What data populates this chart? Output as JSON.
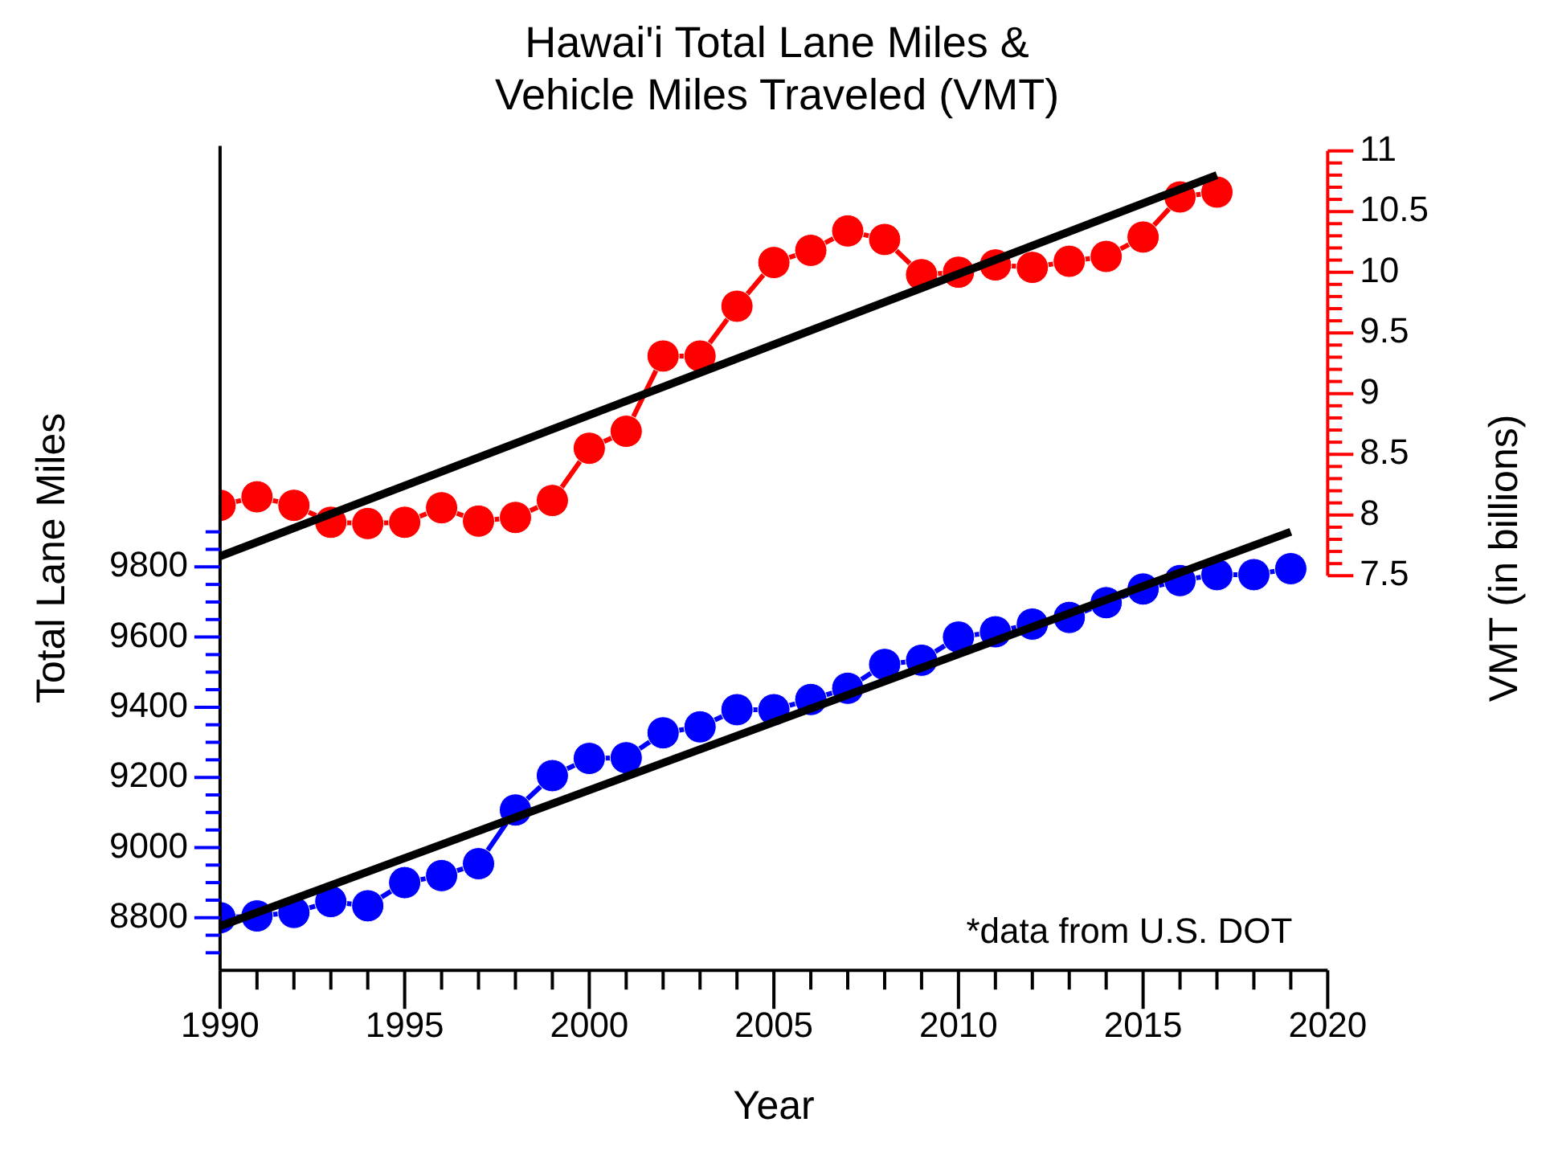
{
  "chart_data": {
    "type": "line",
    "title": "Hawai'i Total Lane Miles &\nVehicle Miles Traveled (VMT)",
    "xlabel": "Year",
    "ylabel": "Total Lane Miles",
    "y2label": "VMT (in billions)",
    "annotations": [
      "*data from U.S. DOT"
    ],
    "x": [
      1990,
      1991,
      1992,
      1993,
      1994,
      1995,
      1996,
      1997,
      1998,
      1999,
      2000,
      2001,
      2002,
      2003,
      2004,
      2005,
      2006,
      2007,
      2008,
      2009,
      2010,
      2011,
      2012,
      2013,
      2014,
      2015,
      2016,
      2017,
      2018,
      2019
    ],
    "series": [
      {
        "color": "#0000ff",
        "values": [
          8800,
          8805,
          8815,
          8846,
          8834,
          8900,
          8920,
          8954,
          9107,
          9205,
          9254,
          9256,
          9327,
          9344,
          9393,
          9393,
          9422,
          9454,
          9522,
          9534,
          9600,
          9615,
          9637,
          9656,
          9698,
          9737,
          9761,
          9778,
          9778,
          9795
        ]
      },
      {
        "color": "#ff0000",
        "axis": "y2",
        "x": [
          1990,
          1991,
          1992,
          1993,
          1994,
          1995,
          1996,
          1997,
          1998,
          1999,
          2000,
          2001,
          2002,
          2003,
          2004,
          2005,
          2006,
          2007,
          2008,
          2009,
          2010,
          2011,
          2012,
          2013,
          2014,
          2015,
          2016,
          2017
        ],
        "values": [
          8.08,
          8.15,
          8.08,
          7.94,
          7.93,
          7.94,
          8.06,
          7.95,
          7.98,
          8.12,
          8.55,
          8.69,
          9.31,
          9.31,
          9.72,
          10.08,
          10.18,
          10.34,
          10.27,
          9.98,
          10.0,
          10.06,
          10.04,
          10.09,
          10.13,
          10.29,
          10.62,
          10.66
        ]
      },
      {
        "type": "line",
        "color": "#000000",
        "marker": "none",
        "x": [
          1990,
          2019
        ],
        "values": [
          8776,
          9900
        ]
      },
      {
        "type": "line",
        "color": "#000000",
        "marker": "none",
        "axis": "y2",
        "x": [
          1990,
          2017
        ],
        "values": [
          7.66,
          10.8
        ]
      }
    ],
    "marker": "circle",
    "grid": false,
    "legend": false,
    "xlim": [
      1990,
      2020
    ],
    "xticks": [
      1990,
      1995,
      2000,
      2005,
      2010,
      2015,
      2020
    ],
    "ylim": [
      8650,
      11000
    ],
    "yticks": [
      8800,
      9000,
      9200,
      9400,
      9600,
      9800
    ],
    "y2lim": [
      4.25,
      11.04
    ],
    "y2ticks": [
      7.5,
      8,
      8.5,
      9,
      9.5,
      10,
      10.5,
      11
    ]
  }
}
